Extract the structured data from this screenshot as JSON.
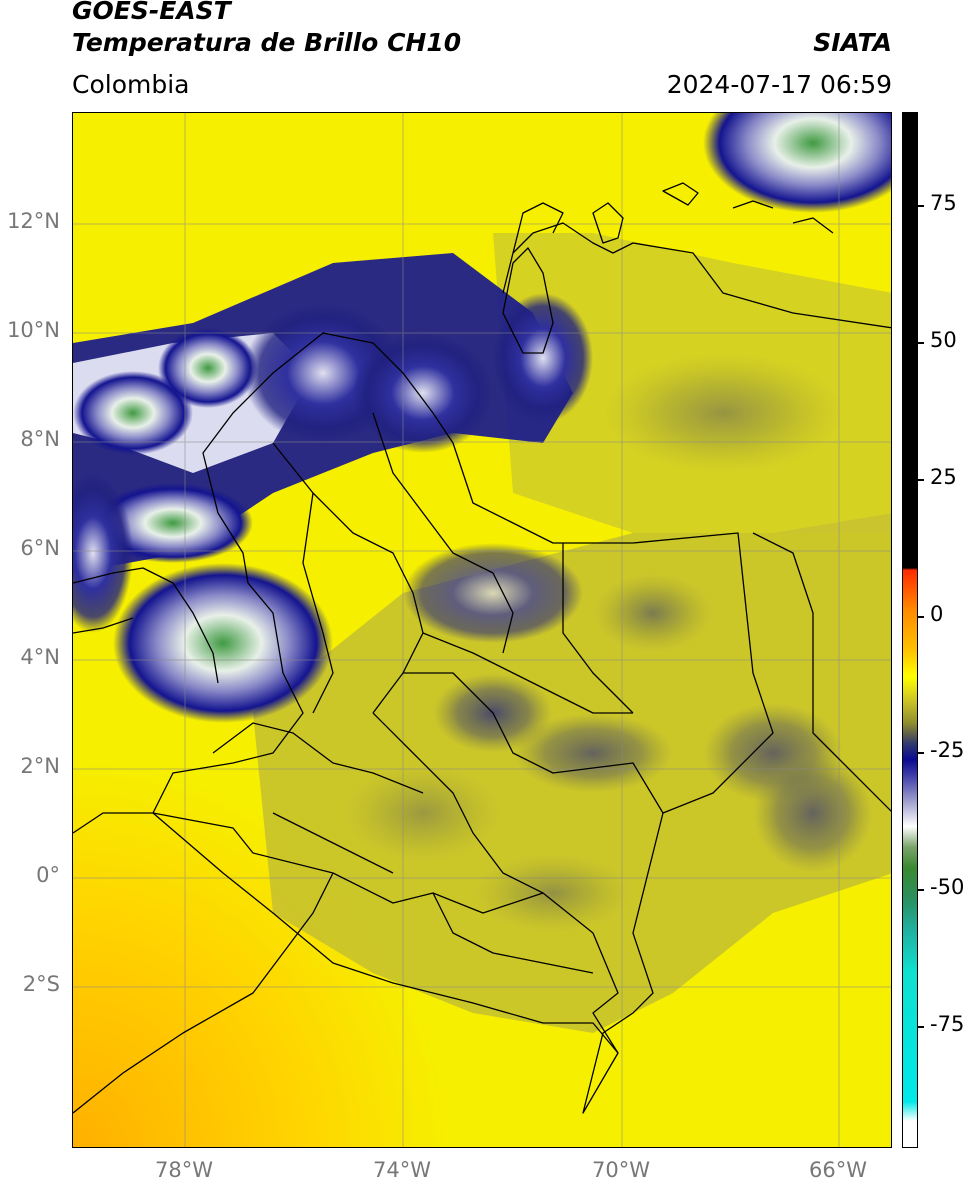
{
  "header": {
    "satellite": "GOES-EAST",
    "product": "Temperatura de Brillo CH10",
    "region": "Colombia",
    "org": "SIATA",
    "datetime": "2024-07-17 06:59"
  },
  "colorbar": {
    "ticks": [
      "75",
      "50",
      "25",
      "0",
      "-25",
      "-50",
      "-75"
    ]
  },
  "axes": {
    "lat_labels": [
      "12°N",
      "10°N",
      "8°N",
      "6°N",
      "4°N",
      "2°N",
      "0°",
      "2°S"
    ],
    "lon_labels": [
      "78°W",
      "74°W",
      "70°W",
      "66°W"
    ]
  },
  "colors": {
    "background_yellow": "#f4f000",
    "olive": "#b4b22e",
    "cloud_blue": "#141490",
    "cloud_white": "#f2f2f8",
    "cloud_green": "#3f9a42",
    "orange": "#ffc200"
  }
}
